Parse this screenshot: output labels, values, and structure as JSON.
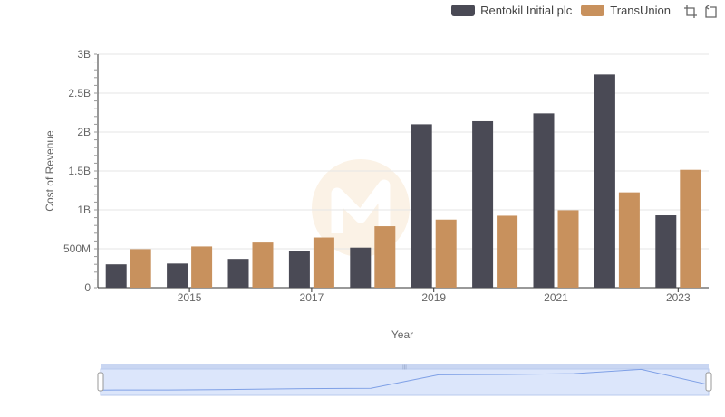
{
  "chart_data": {
    "type": "bar",
    "title": "",
    "xlabel": "Year",
    "ylabel": "Cost of Revenue",
    "categories": [
      "2014",
      "2015",
      "2016",
      "2017",
      "2018",
      "2019",
      "2020",
      "2021",
      "2022",
      "2023"
    ],
    "x_tick_labels": [
      "2015",
      "2017",
      "2019",
      "2021",
      "2023"
    ],
    "y_tick_labels": [
      "0",
      "500M",
      "1B",
      "1.5B",
      "2B",
      "2.5B",
      "3B"
    ],
    "ylim": [
      0,
      3000000000
    ],
    "series": [
      {
        "name": "Rentokil Initial plc",
        "color": "#4a4a55",
        "values": [
          300000000,
          310000000,
          370000000,
          475000000,
          515000000,
          2100000000,
          2140000000,
          2240000000,
          2740000000,
          930000000
        ]
      },
      {
        "name": "TransUnion",
        "color": "#c8915d",
        "values": [
          495000000,
          530000000,
          580000000,
          645000000,
          790000000,
          875000000,
          925000000,
          995000000,
          1225000000,
          1515000000
        ]
      }
    ],
    "legend_position": "top-right",
    "grid": true,
    "navigator": true
  }
}
